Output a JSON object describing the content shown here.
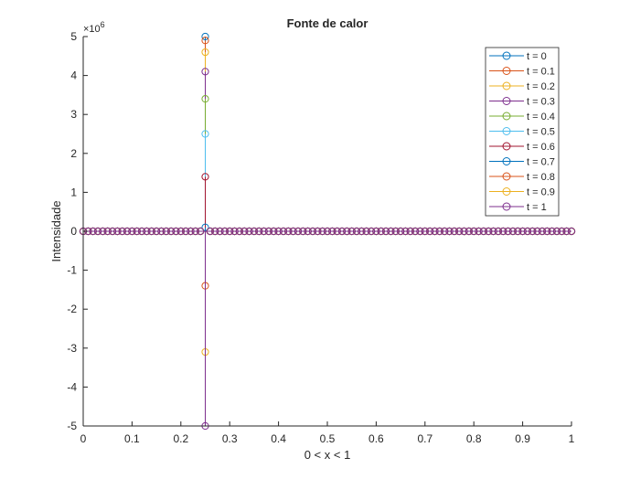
{
  "chart_data": {
    "type": "stem",
    "title": "Fonte de calor",
    "xlabel": "0 < x < 1",
    "ylabel": "Intensidade",
    "y_exponent_label": "×10",
    "y_exponent_power": "6",
    "xlim": [
      0,
      1
    ],
    "ylim": [
      -5,
      5
    ],
    "x_ticks": [
      "0",
      "0.1",
      "0.2",
      "0.3",
      "0.4",
      "0.5",
      "0.6",
      "0.7",
      "0.8",
      "0.9",
      "1"
    ],
    "y_ticks": [
      "-5",
      "-4",
      "-3",
      "-2",
      "-1",
      "0",
      "1",
      "2",
      "3",
      "4",
      "5"
    ],
    "x_tick_values": [
      0,
      0.1,
      0.2,
      0.3,
      0.4,
      0.5,
      0.6,
      0.7,
      0.8,
      0.9,
      1
    ],
    "y_tick_values": [
      -5,
      -4,
      -3,
      -2,
      -1,
      0,
      1,
      2,
      3,
      4,
      5
    ],
    "grid": false,
    "legend_position": "top-right",
    "grid_points": 101,
    "source_x": 0.25,
    "series": [
      {
        "name": "t = 0",
        "color": "#0072BD",
        "peak": 5.0
      },
      {
        "name": "t = 0.1",
        "color": "#D95319",
        "peak": 4.9
      },
      {
        "name": "t = 0.2",
        "color": "#EDB120",
        "peak": 4.6
      },
      {
        "name": "t = 0.3",
        "color": "#7E2F8E",
        "peak": 4.1
      },
      {
        "name": "t = 0.4",
        "color": "#77AC30",
        "peak": 3.4
      },
      {
        "name": "t = 0.5",
        "color": "#4DBEEE",
        "peak": 2.5
      },
      {
        "name": "t = 0.6",
        "color": "#A2142F",
        "peak": 1.4
      },
      {
        "name": "t = 0.7",
        "color": "#0072BD",
        "peak": 0.1
      },
      {
        "name": "t = 0.8",
        "color": "#D95319",
        "peak": -1.4
      },
      {
        "name": "t = 0.9",
        "color": "#EDB120",
        "peak": -3.1
      },
      {
        "name": "t = 1",
        "color": "#7E2F8E",
        "peak": -5.0
      }
    ]
  }
}
